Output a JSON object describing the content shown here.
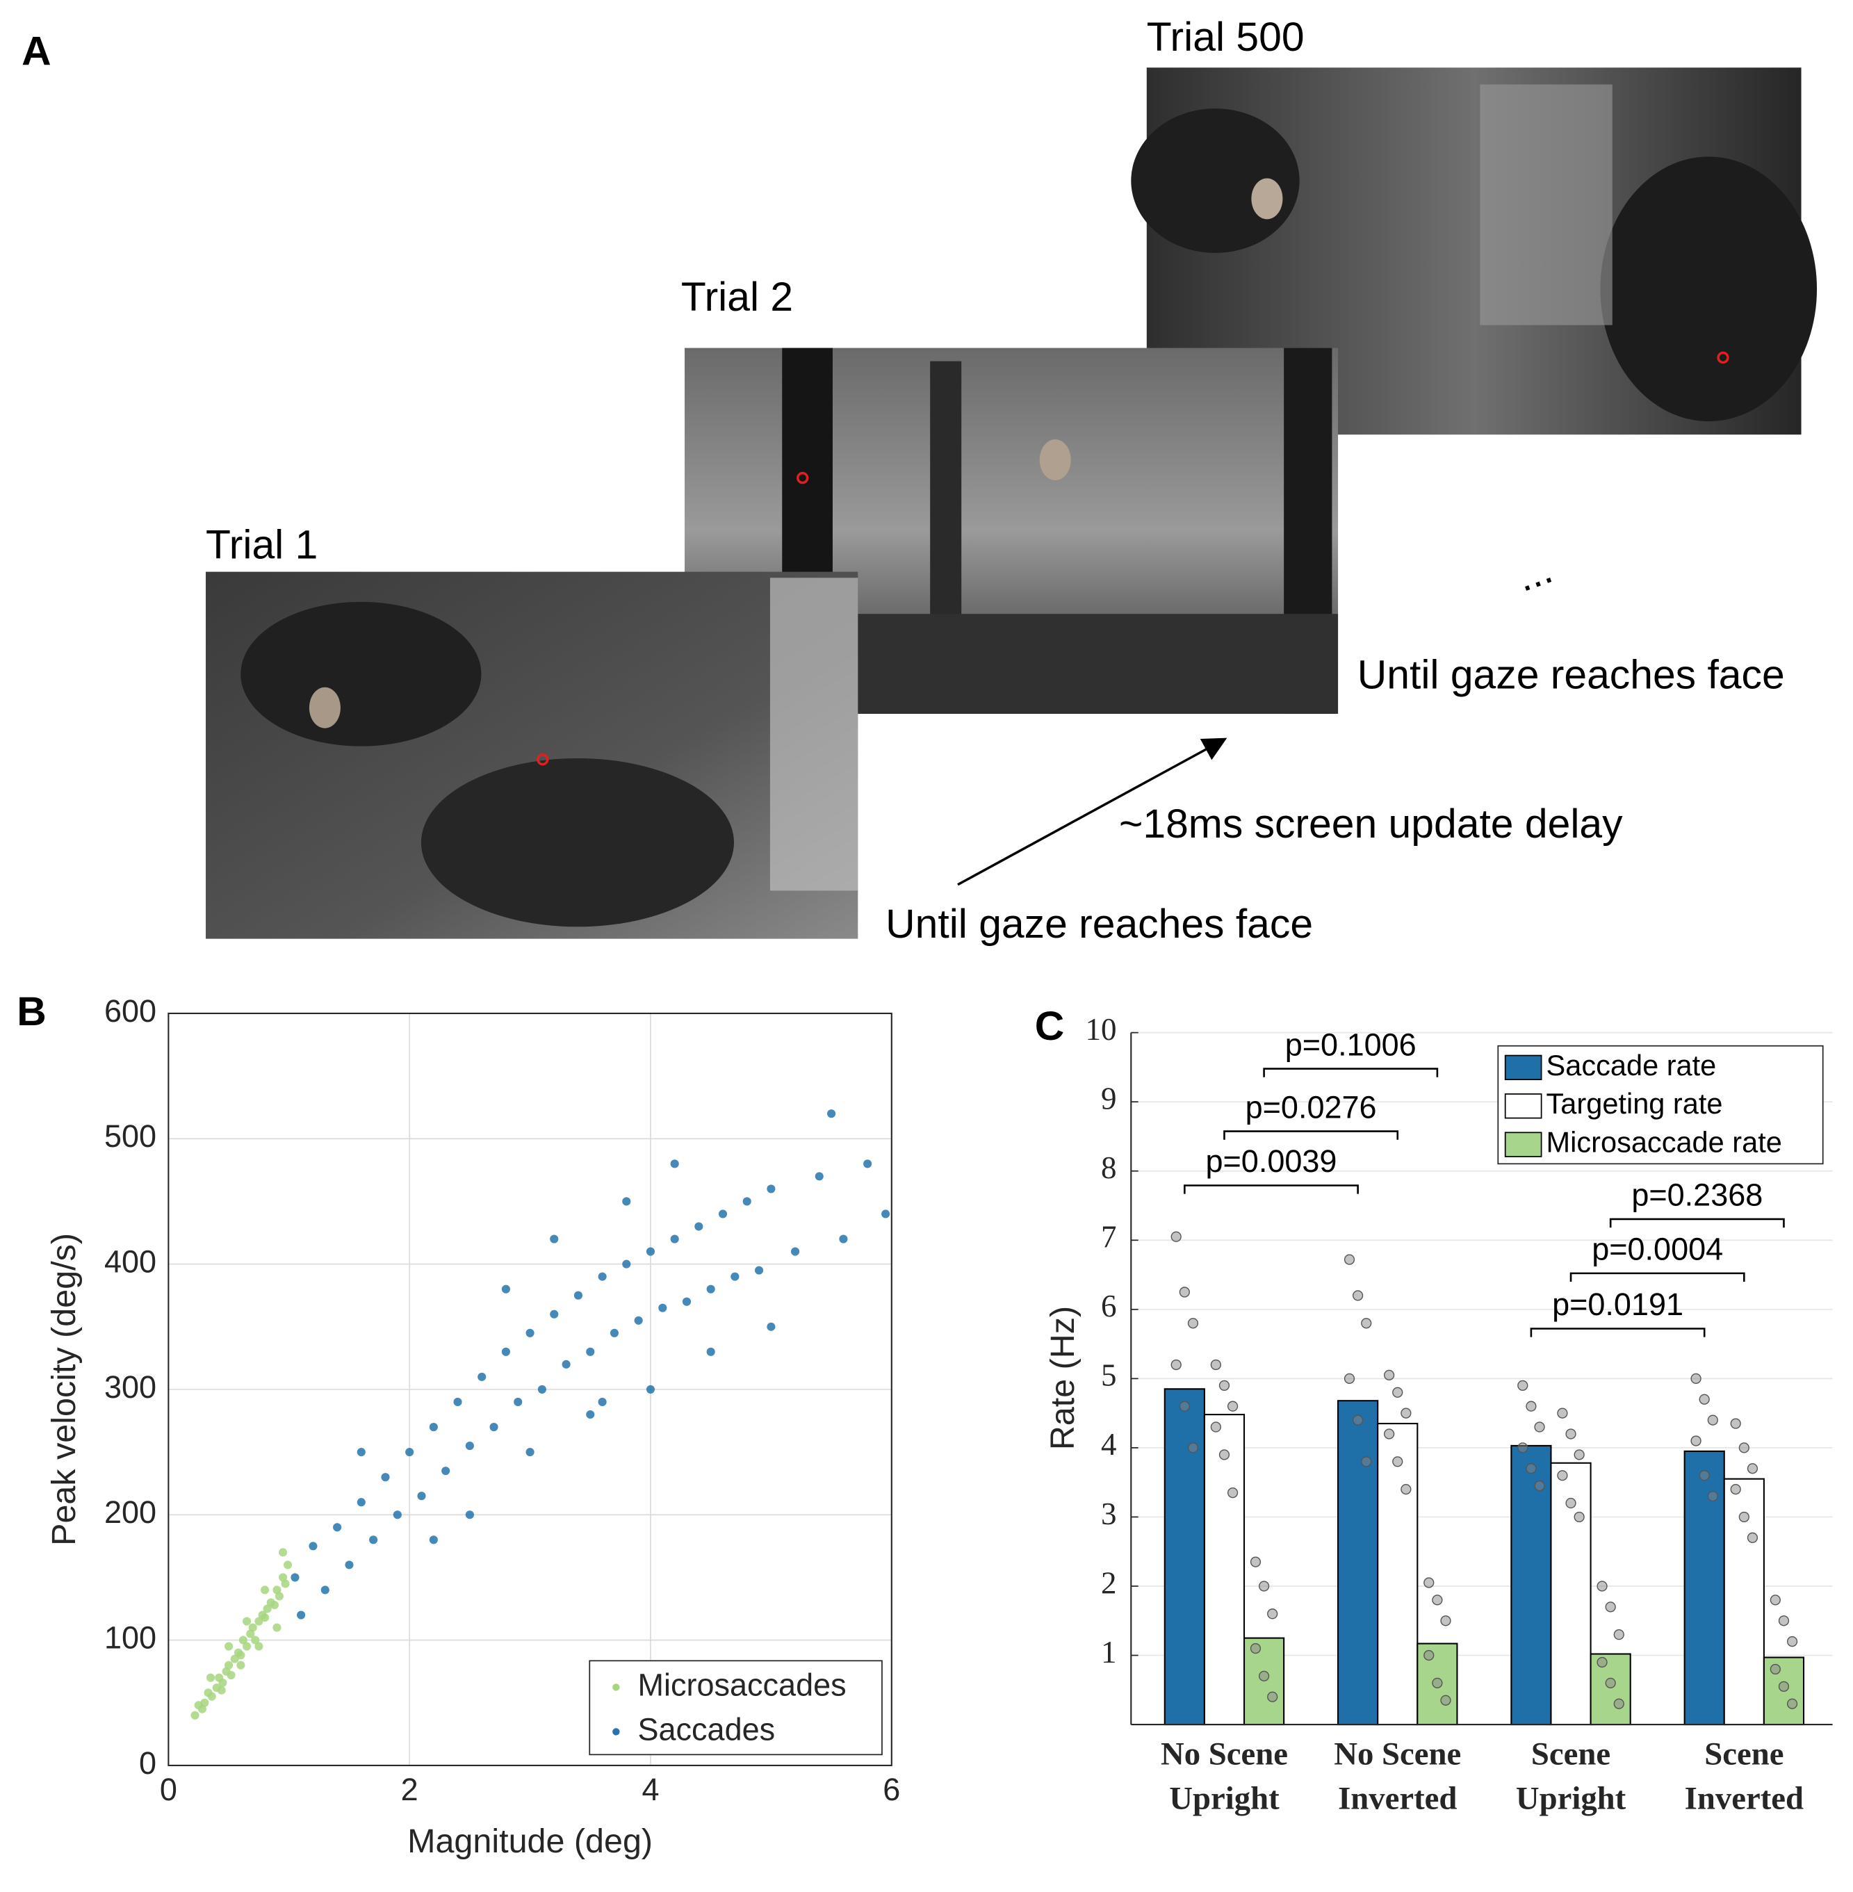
{
  "panel_labels": [
    "A",
    "B",
    "C"
  ],
  "panel_a": {
    "trials": [
      "Trial 1",
      "Trial 2",
      "Trial 500"
    ],
    "ellipsis": "...",
    "until_1": "Until gaze reaches face",
    "until_2": "Until gaze reaches face",
    "delay": "~18ms screen update delay"
  },
  "chart_data": [
    {
      "type": "scatter",
      "xlabel": "Magnitude (deg)",
      "ylabel": "Peak velocity (deg/s)",
      "xlim": [
        0,
        6
      ],
      "ylim": [
        0,
        600
      ],
      "xticks": [
        0,
        2,
        4,
        6
      ],
      "yticks": [
        0,
        100,
        200,
        300,
        400,
        500,
        600
      ],
      "grid": true,
      "legend": "lower right",
      "series": [
        {
          "name": "Microsaccades",
          "color": "#a6d67f",
          "x": [
            0.22,
            0.25,
            0.3,
            0.33,
            0.36,
            0.4,
            0.42,
            0.45,
            0.48,
            0.5,
            0.52,
            0.55,
            0.58,
            0.6,
            0.62,
            0.65,
            0.68,
            0.7,
            0.72,
            0.75,
            0.78,
            0.8,
            0.82,
            0.85,
            0.88,
            0.9,
            0.92,
            0.95,
            0.97,
            0.99,
            0.35,
            0.5,
            0.65,
            0.8,
            0.95,
            0.28,
            0.44,
            0.6,
            0.75,
            0.9
          ],
          "y": [
            40,
            48,
            50,
            58,
            55,
            62,
            70,
            66,
            75,
            80,
            72,
            85,
            90,
            88,
            100,
            95,
            105,
            110,
            100,
            115,
            120,
            118,
            125,
            130,
            128,
            140,
            135,
            150,
            145,
            160,
            70,
            95,
            115,
            140,
            170,
            45,
            60,
            80,
            95,
            110
          ]
        },
        {
          "name": "Saccades",
          "color": "#2574ad",
          "x": [
            1.05,
            1.1,
            1.2,
            1.3,
            1.4,
            1.5,
            1.6,
            1.7,
            1.8,
            1.9,
            2.0,
            2.1,
            2.2,
            2.3,
            2.4,
            2.5,
            2.6,
            2.7,
            2.8,
            2.9,
            3.0,
            3.1,
            3.2,
            3.3,
            3.4,
            3.5,
            3.6,
            3.7,
            3.8,
            3.9,
            4.0,
            4.1,
            4.2,
            4.3,
            4.4,
            4.5,
            4.6,
            4.7,
            4.8,
            4.9,
            5.0,
            5.2,
            5.4,
            5.6,
            5.8,
            5.95,
            2.5,
            3.0,
            3.5,
            4.0,
            4.5,
            3.2,
            3.8,
            4.2,
            2.8,
            5.0,
            5.5,
            2.2,
            1.6,
            3.6
          ],
          "y": [
            150,
            120,
            175,
            140,
            190,
            160,
            210,
            180,
            230,
            200,
            250,
            215,
            270,
            235,
            290,
            255,
            310,
            270,
            330,
            290,
            345,
            300,
            360,
            320,
            375,
            330,
            390,
            345,
            400,
            355,
            410,
            365,
            420,
            370,
            430,
            380,
            440,
            390,
            450,
            395,
            460,
            410,
            470,
            420,
            480,
            440,
            200,
            250,
            280,
            300,
            330,
            420,
            450,
            480,
            380,
            350,
            520,
            180,
            250,
            290
          ]
        }
      ]
    },
    {
      "type": "bar",
      "ylabel": "Rate (Hz)",
      "ylim": [
        0,
        10
      ],
      "yticks": [
        1,
        2,
        3,
        4,
        5,
        6,
        7,
        8,
        9,
        10
      ],
      "legend": "upper right",
      "categories": [
        [
          "No Scene",
          "Upright"
        ],
        [
          "No Scene",
          "Inverted"
        ],
        [
          "Scene",
          "Upright"
        ],
        [
          "Scene",
          "Inverted"
        ]
      ],
      "series": [
        {
          "name": "Saccade rate",
          "color": "#1f6fa8",
          "values": [
            4.85,
            4.68,
            4.03,
            3.95
          ],
          "points": [
            [
              7.05,
              6.25,
              5.8,
              5.2,
              4.6,
              4.0
            ],
            [
              6.72,
              6.2,
              5.8,
              5.0,
              4.4,
              3.8
            ],
            [
              4.9,
              4.6,
              4.3,
              4.0,
              3.7,
              3.45
            ],
            [
              5.0,
              4.7,
              4.4,
              4.1,
              3.6,
              3.3
            ]
          ]
        },
        {
          "name": "Targeting rate",
          "color": "#ffffff",
          "values": [
            4.48,
            4.35,
            3.78,
            3.55
          ],
          "points": [
            [
              5.2,
              4.9,
              4.6,
              4.3,
              3.9,
              3.35
            ],
            [
              5.05,
              4.8,
              4.5,
              4.2,
              3.8,
              3.4
            ],
            [
              4.5,
              4.2,
              3.9,
              3.6,
              3.2,
              3.0
            ],
            [
              4.35,
              4.0,
              3.7,
              3.4,
              3.0,
              2.7
            ]
          ]
        },
        {
          "name": "Microsaccade rate",
          "color": "#a8d58c",
          "values": [
            1.25,
            1.17,
            1.02,
            0.97
          ],
          "points": [
            [
              2.35,
              2.0,
              1.6,
              1.1,
              0.7,
              0.4
            ],
            [
              2.05,
              1.8,
              1.5,
              1.0,
              0.6,
              0.35
            ],
            [
              2.0,
              1.7,
              1.3,
              0.9,
              0.6,
              0.3
            ],
            [
              1.8,
              1.5,
              1.2,
              0.8,
              0.55,
              0.3
            ]
          ]
        }
      ],
      "annotations": [
        "p=0.0039",
        "p=0.0276",
        "p=0.1006",
        "p=0.0191",
        "p=0.0004",
        "p=0.2368"
      ]
    }
  ]
}
